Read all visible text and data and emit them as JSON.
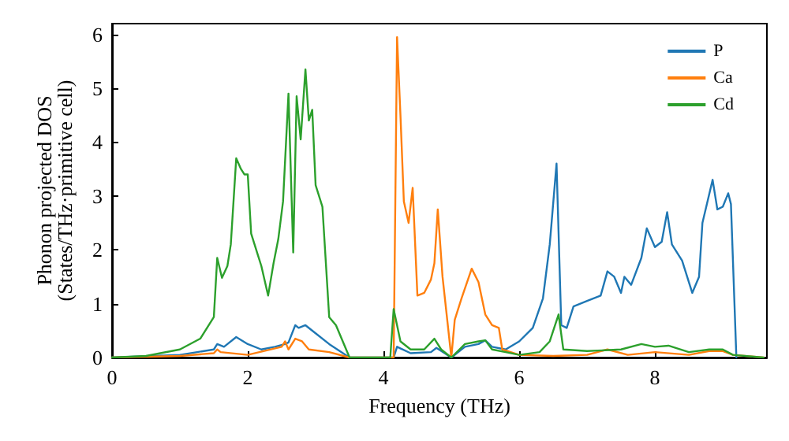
{
  "chart_data": {
    "type": "line",
    "xlabel": "Frequency (THz)",
    "ylabel": "Phonon projected DOS\n(States/THz·primitive cell)",
    "xlim": [
      0,
      9.65
    ],
    "ylim": [
      0,
      6.2
    ],
    "xticks": [
      0,
      2,
      4,
      6,
      8
    ],
    "yticks": [
      0,
      1,
      2,
      3,
      4,
      5,
      6
    ],
    "grid": false,
    "legend": "top right",
    "marker": "none",
    "line_style": "solid",
    "series": [
      {
        "name": "P",
        "color": "#1f77b4",
        "x": [
          0,
          1.0,
          1.5,
          1.55,
          1.65,
          1.83,
          2.0,
          2.2,
          2.4,
          2.55,
          2.6,
          2.7,
          2.75,
          2.85,
          3.0,
          3.2,
          3.5,
          4.15,
          4.2,
          4.4,
          4.7,
          4.78,
          5.0,
          5.2,
          5.4,
          5.5,
          5.6,
          5.8,
          6.0,
          6.2,
          6.35,
          6.45,
          6.55,
          6.62,
          6.7,
          6.8,
          7.0,
          7.2,
          7.3,
          7.4,
          7.5,
          7.55,
          7.65,
          7.8,
          7.88,
          8.0,
          8.1,
          8.18,
          8.25,
          8.4,
          8.55,
          8.65,
          8.7,
          8.85,
          8.92,
          9.0,
          9.08,
          9.12,
          9.2
        ],
        "values": [
          0,
          0.05,
          0.15,
          0.25,
          0.2,
          0.38,
          0.25,
          0.15,
          0.2,
          0.25,
          0.28,
          0.6,
          0.55,
          0.6,
          0.45,
          0.25,
          0,
          0,
          0.2,
          0.08,
          0.1,
          0.18,
          0,
          0.2,
          0.25,
          0.32,
          0.2,
          0.15,
          0.3,
          0.55,
          1.1,
          2.1,
          3.6,
          0.6,
          0.55,
          0.95,
          1.05,
          1.15,
          1.6,
          1.5,
          1.2,
          1.5,
          1.35,
          1.85,
          2.4,
          2.05,
          2.15,
          2.7,
          2.1,
          1.8,
          1.2,
          1.5,
          2.5,
          3.3,
          2.75,
          2.8,
          3.05,
          2.85,
          0
        ]
      },
      {
        "name": "Ca",
        "color": "#ff7f0e",
        "x": [
          0,
          1.0,
          1.5,
          1.55,
          1.6,
          2.0,
          2.5,
          2.55,
          2.6,
          2.7,
          2.8,
          2.9,
          3.2,
          3.5,
          4.15,
          4.2,
          4.25,
          4.3,
          4.37,
          4.43,
          4.5,
          4.6,
          4.7,
          4.75,
          4.8,
          4.87,
          5.0,
          5.05,
          5.15,
          5.3,
          5.4,
          5.5,
          5.6,
          5.7,
          5.75,
          6.0,
          6.5,
          7.0,
          7.3,
          7.6,
          8.0,
          8.5,
          8.8,
          9.0,
          9.15,
          9.6
        ],
        "values": [
          0,
          0.03,
          0.08,
          0.15,
          0.1,
          0.05,
          0.2,
          0.3,
          0.15,
          0.35,
          0.3,
          0.15,
          0.1,
          0,
          0,
          5.95,
          4.5,
          2.9,
          2.5,
          3.15,
          1.15,
          1.2,
          1.45,
          1.75,
          2.75,
          1.5,
          0,
          0.7,
          1.1,
          1.65,
          1.4,
          0.8,
          0.6,
          0.55,
          0.15,
          0.05,
          0.03,
          0.05,
          0.15,
          0.05,
          0.1,
          0.05,
          0.12,
          0.12,
          0.05,
          0
        ]
      },
      {
        "name": "Cd",
        "color": "#2ca02c",
        "x": [
          0,
          0.5,
          1.0,
          1.3,
          1.5,
          1.55,
          1.62,
          1.7,
          1.75,
          1.83,
          1.9,
          1.95,
          2.0,
          2.05,
          2.15,
          2.2,
          2.3,
          2.38,
          2.45,
          2.52,
          2.6,
          2.67,
          2.72,
          2.78,
          2.85,
          2.9,
          2.95,
          3.0,
          3.1,
          3.2,
          3.3,
          3.5,
          4.1,
          4.15,
          4.25,
          4.4,
          4.6,
          4.75,
          4.85,
          5.0,
          5.2,
          5.4,
          5.5,
          5.6,
          5.8,
          6.0,
          6.3,
          6.45,
          6.58,
          6.65,
          7.0,
          7.5,
          7.8,
          8.0,
          8.2,
          8.5,
          8.8,
          9.0,
          9.15,
          9.6
        ],
        "values": [
          0,
          0.03,
          0.15,
          0.35,
          0.75,
          1.85,
          1.48,
          1.7,
          2.1,
          3.7,
          3.5,
          3.4,
          3.4,
          2.3,
          1.9,
          1.7,
          1.15,
          1.75,
          2.2,
          2.9,
          4.9,
          1.95,
          4.85,
          4.05,
          5.35,
          4.4,
          4.6,
          3.2,
          2.8,
          0.75,
          0.6,
          0,
          0,
          0.9,
          0.3,
          0.15,
          0.15,
          0.35,
          0.15,
          0,
          0.25,
          0.3,
          0.32,
          0.15,
          0.1,
          0.05,
          0.1,
          0.3,
          0.8,
          0.15,
          0.12,
          0.15,
          0.25,
          0.2,
          0.22,
          0.1,
          0.15,
          0.15,
          0.05,
          0
        ]
      }
    ]
  }
}
